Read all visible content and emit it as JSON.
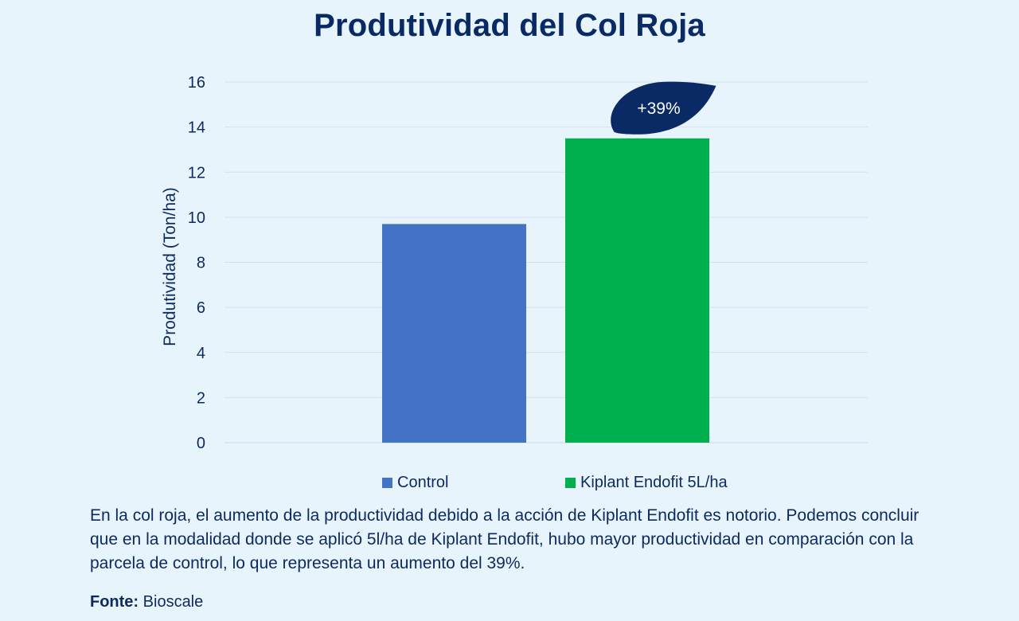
{
  "chart_data": {
    "type": "bar",
    "title": "Produtividad del Col Roja",
    "ylabel": "Produtividad (Ton/ha)",
    "xlabel": "",
    "ylim": [
      0,
      16
    ],
    "yticks": [
      0,
      2,
      4,
      6,
      8,
      10,
      12,
      14,
      16
    ],
    "grid": true,
    "legend_position": "bottom",
    "categories": [
      "Control",
      "Kiplant Endofit 5L/ha"
    ],
    "values": [
      9.7,
      13.5
    ],
    "colors": [
      "#4472c4",
      "#00b04f"
    ],
    "annotation": {
      "text": "+39%",
      "target": "Kiplant Endofit 5L/ha",
      "color": "#0a2a66"
    }
  },
  "description": "En la col roja, el aumento de la productividad debido a la acción de Kiplant Endofit es notorio. Podemos concluir que en la modalidad donde se aplicó 5l/ha de Kiplant Endofit, hubo mayor productividad en comparación con la parcela de control, lo que representa un aumento del 39%.",
  "source": {
    "label": "Fonte:",
    "value": "Bioscale"
  }
}
